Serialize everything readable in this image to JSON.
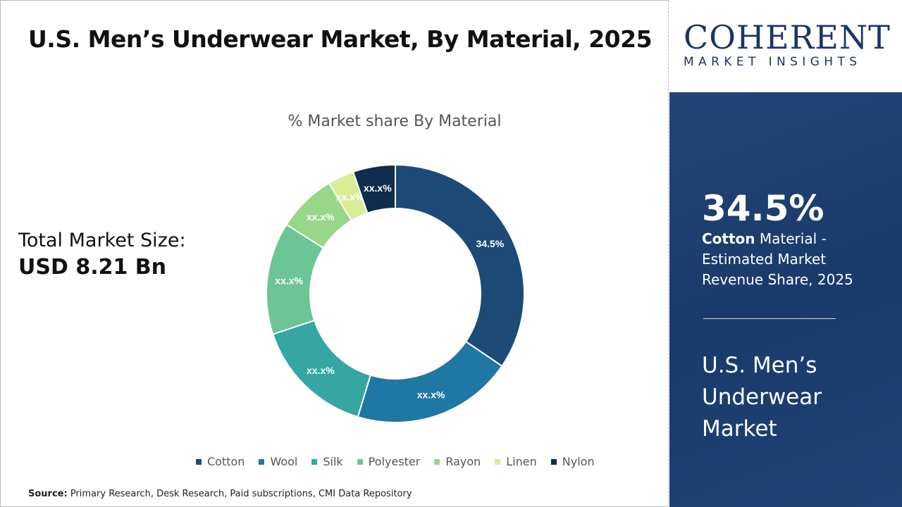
{
  "title": "U.S. Men’s Underwear Market, By Material, 2025",
  "total_label": "Total Market Size:",
  "total_value": "USD 8.21 Bn",
  "source_label": "Source:",
  "source_text": " Primary Research, Desk Research, Paid subscriptions, CMI Data Repository",
  "logo": {
    "top": "COHERENT",
    "bottom": "MARKET INSIGHTS"
  },
  "panel": {
    "big": "34.5%",
    "bold": "Cotton",
    "desc": " Material - Estimated Market Revenue Share, 2025",
    "market": "U.S. Men’s Underwear Market"
  },
  "chart_data": {
    "type": "pie",
    "donut": true,
    "title": "% Market share By Material",
    "legend_placement": "bottom",
    "categories": [
      "Cotton",
      "Wool",
      "Silk",
      "Polyester",
      "Rayon",
      "Linen",
      "Nylon"
    ],
    "values": [
      34.5,
      20.2,
      15.2,
      14.1,
      7.4,
      3.3,
      5.3
    ],
    "labels": [
      "34.5%",
      "xx.x%",
      "xx.x%",
      "xx.x%",
      "xx.x%",
      "xx.x%",
      "xx.x%"
    ],
    "colors": [
      "#1c4b78",
      "#1f77a3",
      "#35a6a2",
      "#6cc594",
      "#98d68a",
      "#d7ee96",
      "#0f2d4d"
    ]
  }
}
